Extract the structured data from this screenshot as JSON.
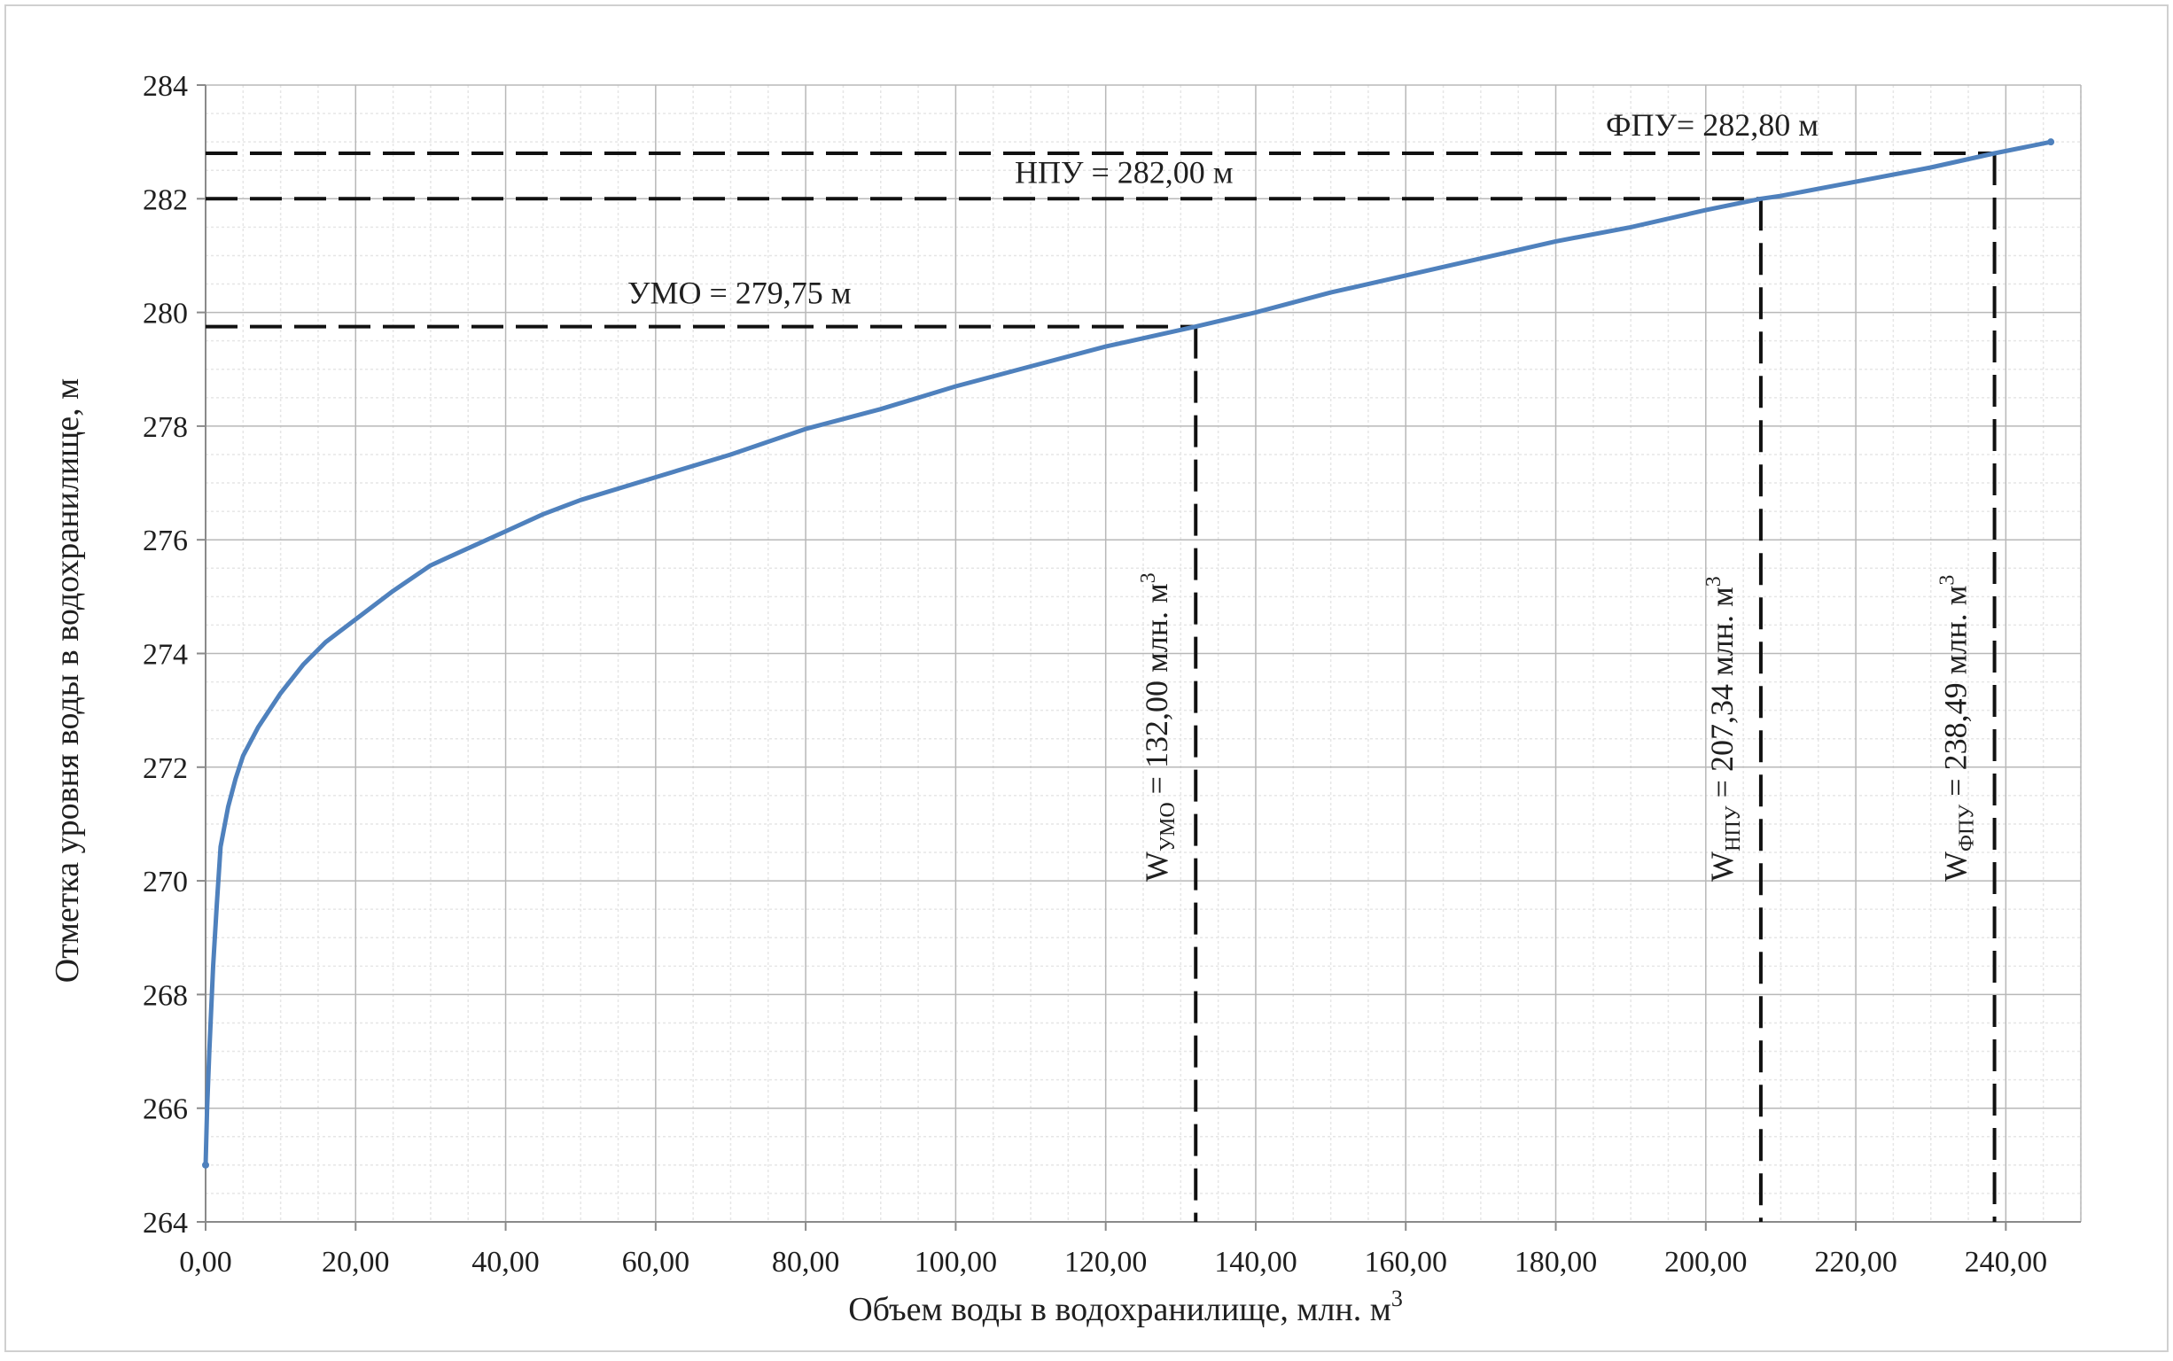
{
  "chart_data": {
    "type": "line",
    "title": "",
    "xlabel": "Объем воды в водохранилище, млн. м",
    "xlabel_sup": "3",
    "ylabel": "Отметка уровня воды в водохранилище, м",
    "xlim": [
      0,
      250
    ],
    "ylim": [
      264,
      284
    ],
    "x_ticks": [
      0,
      20,
      40,
      60,
      80,
      100,
      120,
      140,
      160,
      180,
      200,
      220,
      240
    ],
    "x_tick_labels": [
      "0,00",
      "20,00",
      "40,00",
      "60,00",
      "80,00",
      "100,00",
      "120,00",
      "140,00",
      "160,00",
      "180,00",
      "200,00",
      "220,00",
      "240,00"
    ],
    "y_ticks": [
      264,
      266,
      268,
      270,
      272,
      274,
      276,
      278,
      280,
      282,
      284
    ],
    "y_tick_labels": [
      "264",
      "266",
      "268",
      "270",
      "272",
      "274",
      "276",
      "278",
      "280",
      "282",
      "284"
    ],
    "grid": true,
    "line_color": "#4f81bd",
    "series": [
      {
        "x": [
          0,
          0.2,
          0.5,
          1,
          1.5,
          2,
          3,
          4,
          5,
          7,
          10,
          13,
          16,
          20,
          25,
          30,
          35,
          40,
          45,
          50,
          60,
          70,
          80,
          90,
          100,
          110,
          120,
          132,
          140,
          150,
          160,
          170,
          180,
          190,
          200,
          207.34,
          210,
          220,
          230,
          238.49,
          246
        ],
        "y": [
          265.0,
          266.0,
          267.0,
          268.5,
          269.6,
          270.6,
          271.3,
          271.8,
          272.2,
          272.7,
          273.3,
          273.8,
          274.2,
          274.6,
          275.1,
          275.55,
          275.85,
          276.15,
          276.45,
          276.7,
          277.1,
          277.5,
          277.95,
          278.3,
          278.7,
          279.05,
          279.4,
          279.75,
          280.0,
          280.35,
          280.65,
          280.95,
          281.25,
          281.5,
          281.8,
          282.0,
          282.05,
          282.3,
          282.55,
          282.8,
          283.0
        ]
      }
    ],
    "reference_lines": [
      {
        "label": "ФПУ= 282,80 м",
        "y": 282.8,
        "x": 238.49
      },
      {
        "label": "НПУ = 282,00 м",
        "y": 282.0,
        "x": 207.34
      },
      {
        "label": "УМО = 279,75 м",
        "y": 279.75,
        "x": 132.0
      }
    ],
    "volume_annotations": [
      {
        "w": "W",
        "sub": "УМО",
        "text": " = 132,00 млн. м",
        "sup": "3",
        "x": 132.0
      },
      {
        "w": "W",
        "sub": "НПУ",
        "text": " = 207,34 млн. м",
        "sup": "3",
        "x": 207.34
      },
      {
        "w": "W",
        "sub": "ФПУ",
        "text": " = 238,49 млн. м",
        "sup": "3",
        "x": 238.49
      }
    ]
  }
}
